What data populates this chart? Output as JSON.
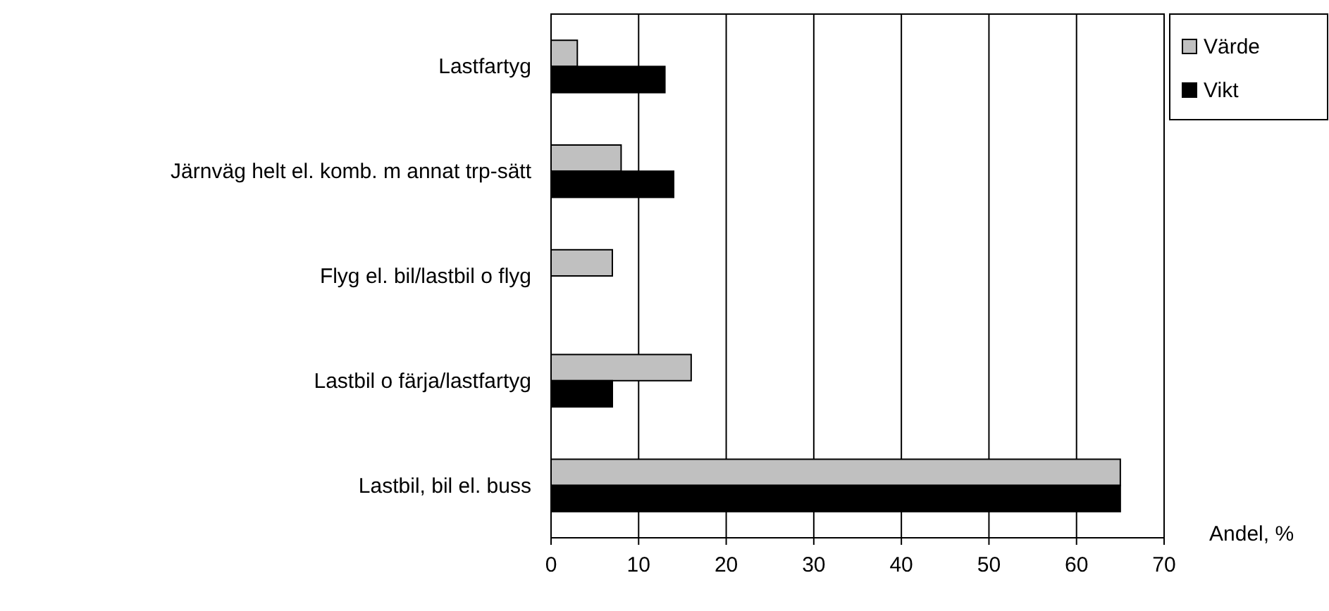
{
  "chart_data": {
    "type": "bar",
    "orientation": "horizontal",
    "xlabel": "Andel, %",
    "categories": [
      "Lastfartyg",
      "Järnväg helt el. komb. m annat trp-sätt",
      "Flyg el. bil/lastbil o flyg",
      "Lastbil o färja/lastfartyg",
      "Lastbil, bil el. buss"
    ],
    "series": [
      {
        "name": "Värde",
        "color": "#c0c0c0",
        "values": [
          3,
          8,
          7,
          16,
          65
        ]
      },
      {
        "name": "Vikt",
        "color": "#000000",
        "values": [
          13,
          14,
          0,
          7,
          65
        ]
      }
    ],
    "xlim": [
      0,
      70
    ],
    "xticks": [
      0,
      10,
      20,
      30,
      40,
      50,
      60,
      70
    ],
    "grid": "x",
    "legend": "top right"
  }
}
